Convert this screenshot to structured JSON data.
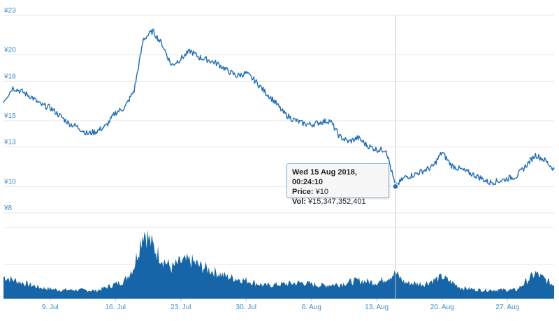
{
  "chart_data": {
    "type": "line",
    "y_axis": {
      "ticks": [
        "¥23",
        "¥20",
        "¥18",
        "¥15",
        "¥13",
        "¥10",
        "¥8"
      ],
      "values": [
        23,
        20,
        18,
        15,
        13,
        10,
        8
      ],
      "ylim": [
        8,
        23
      ]
    },
    "x_axis": {
      "ticks": [
        "9. Jul",
        "16. Jul",
        "23. Jul",
        "30. Jul",
        "6. Aug",
        "13. Aug",
        "20. Aug",
        "27. Aug"
      ],
      "range": [
        "2018-07-04",
        "2018-09-01"
      ]
    },
    "grid": true,
    "price_series": {
      "x": [
        "2018-07-04",
        "2018-07-05",
        "2018-07-06",
        "2018-07-07",
        "2018-07-08",
        "2018-07-09",
        "2018-07-10",
        "2018-07-11",
        "2018-07-12",
        "2018-07-13",
        "2018-07-14",
        "2018-07-15",
        "2018-07-16",
        "2018-07-17",
        "2018-07-18",
        "2018-07-19",
        "2018-07-20",
        "2018-07-21",
        "2018-07-22",
        "2018-07-23",
        "2018-07-24",
        "2018-07-25",
        "2018-07-26",
        "2018-07-27",
        "2018-07-28",
        "2018-07-29",
        "2018-07-30",
        "2018-07-31",
        "2018-08-01",
        "2018-08-02",
        "2018-08-03",
        "2018-08-04",
        "2018-08-05",
        "2018-08-06",
        "2018-08-07",
        "2018-08-08",
        "2018-08-09",
        "2018-08-10",
        "2018-08-11",
        "2018-08-12",
        "2018-08-13",
        "2018-08-14",
        "2018-08-15",
        "2018-08-16",
        "2018-08-17",
        "2018-08-18",
        "2018-08-19",
        "2018-08-20",
        "2018-08-21",
        "2018-08-22",
        "2018-08-23",
        "2018-08-24",
        "2018-08-25",
        "2018-08-26",
        "2018-08-27",
        "2018-08-28",
        "2018-08-29",
        "2018-08-30",
        "2018-08-31",
        "2018-09-01"
      ],
      "y": [
        16.5,
        17.5,
        17.2,
        16.8,
        16.2,
        16.0,
        15.4,
        14.8,
        14.5,
        14.0,
        14.2,
        14.6,
        15.6,
        16.0,
        17.3,
        21.2,
        21.8,
        20.8,
        19.2,
        19.7,
        20.3,
        19.8,
        19.6,
        19.3,
        18.8,
        18.4,
        18.6,
        18.0,
        17.2,
        16.5,
        15.6,
        15.1,
        14.8,
        14.7,
        14.9,
        15.0,
        13.8,
        13.4,
        13.7,
        13.1,
        12.8,
        12.8,
        10.0,
        10.7,
        10.9,
        11.2,
        11.5,
        12.6,
        11.6,
        11.3,
        11.0,
        10.7,
        10.3,
        10.4,
        10.6,
        10.8,
        11.6,
        12.4,
        12.0,
        11.3
      ]
    },
    "volume_series": {
      "x": [
        "2018-07-04",
        "2018-07-06",
        "2018-07-08",
        "2018-07-10",
        "2018-07-12",
        "2018-07-14",
        "2018-07-16",
        "2018-07-17",
        "2018-07-18",
        "2018-07-19",
        "2018-07-20",
        "2018-07-21",
        "2018-07-22",
        "2018-07-23",
        "2018-07-24",
        "2018-07-25",
        "2018-07-26",
        "2018-07-28",
        "2018-07-30",
        "2018-08-01",
        "2018-08-03",
        "2018-08-05",
        "2018-08-07",
        "2018-08-09",
        "2018-08-11",
        "2018-08-13",
        "2018-08-14",
        "2018-08-15",
        "2018-08-16",
        "2018-08-18",
        "2018-08-20",
        "2018-08-22",
        "2018-08-24",
        "2018-08-26",
        "2018-08-28",
        "2018-08-30",
        "2018-09-01"
      ],
      "y": [
        0.3,
        0.22,
        0.15,
        0.12,
        0.12,
        0.11,
        0.2,
        0.25,
        0.45,
        0.95,
        0.72,
        0.55,
        0.42,
        0.5,
        0.52,
        0.45,
        0.4,
        0.3,
        0.25,
        0.18,
        0.2,
        0.22,
        0.18,
        0.2,
        0.25,
        0.22,
        0.28,
        0.35,
        0.22,
        0.2,
        0.3,
        0.15,
        0.12,
        0.12,
        0.12,
        0.35,
        0.18
      ]
    },
    "cursor_date": "2018-08-15"
  },
  "tooltip": {
    "title": "Wed 15 Aug 2018, 00:24:10",
    "price_label": "Price:",
    "price_value": "¥10",
    "vol_label": "Vol:",
    "vol_value": "¥15,347,352,401"
  },
  "colors": {
    "line": "#1f6db3",
    "volume": "#1565a8",
    "grid": "#e6e6e6",
    "ticks": "#3d8fc7",
    "crosshair": "#c8c8c8"
  }
}
